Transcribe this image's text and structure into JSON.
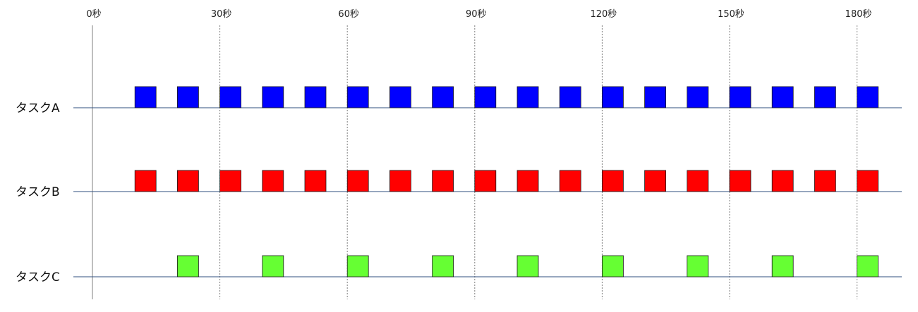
{
  "chart_data": {
    "type": "timeline",
    "time_unit_suffix": "秒",
    "x_ticks": [
      {
        "value": 0,
        "label": "0秒"
      },
      {
        "value": 30,
        "label": "30秒"
      },
      {
        "value": 60,
        "label": "60秒"
      },
      {
        "value": 90,
        "label": "90秒"
      },
      {
        "value": 120,
        "label": "120秒"
      },
      {
        "value": 150,
        "label": "150秒"
      },
      {
        "value": 180,
        "label": "180秒"
      }
    ],
    "x_range": [
      0,
      180
    ],
    "grid": true,
    "block_duration": 5,
    "tasks": [
      {
        "name": "タスクA",
        "color": "#0000ff",
        "start_times": [
          10,
          20,
          30,
          40,
          50,
          60,
          70,
          80,
          90,
          100,
          110,
          120,
          130,
          140,
          150,
          160,
          170,
          180
        ]
      },
      {
        "name": "タスクB",
        "color": "#ff0000",
        "start_times": [
          10,
          20,
          30,
          40,
          50,
          60,
          70,
          80,
          90,
          100,
          110,
          120,
          130,
          140,
          150,
          160,
          170,
          180
        ]
      },
      {
        "name": "タスクC",
        "color": "#66ff33",
        "start_times": [
          20,
          40,
          60,
          80,
          100,
          120,
          140,
          160,
          180
        ]
      }
    ]
  }
}
